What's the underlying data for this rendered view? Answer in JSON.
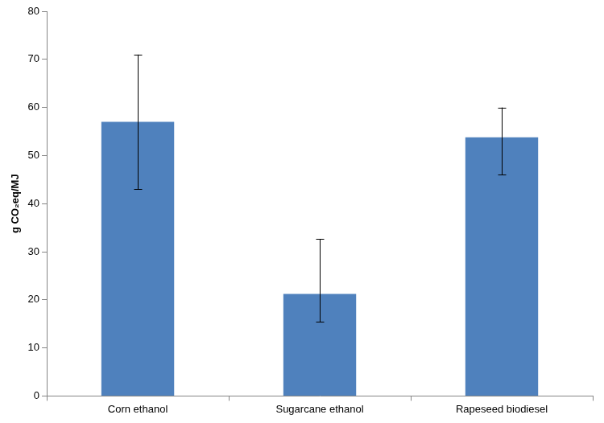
{
  "chart_data": {
    "type": "bar",
    "y_label": "g CO₂eq/MJ",
    "categories": [
      "Corn ethanol",
      "Sugarcane ethanol",
      "Rapeseed biodiesel"
    ],
    "values": [
      57,
      21.2,
      53.8
    ],
    "error_low": [
      43,
      15.4,
      46
    ],
    "error_high": [
      71,
      32.6,
      60
    ],
    "color": "#4f81bd",
    "ylim": [
      0,
      80
    ],
    "yticks": [
      0,
      10,
      20,
      30,
      40,
      50,
      60,
      70,
      80
    ],
    "grid": false
  }
}
